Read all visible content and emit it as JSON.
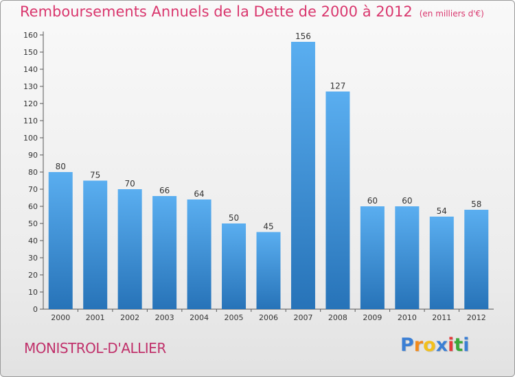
{
  "chart_data": {
    "type": "bar",
    "title": "Remboursements Annuels de la Dette de 2000 à 2012",
    "subtitle": "(en milliers d'€)",
    "categories": [
      "2000",
      "2001",
      "2002",
      "2003",
      "2004",
      "2005",
      "2006",
      "2007",
      "2008",
      "2009",
      "2010",
      "2011",
      "2012"
    ],
    "values": [
      80,
      75,
      70,
      66,
      64,
      50,
      45,
      156,
      127,
      60,
      60,
      54,
      58
    ],
    "ylim": [
      0,
      160
    ],
    "yticks": [
      0,
      10,
      20,
      30,
      40,
      50,
      60,
      70,
      80,
      90,
      100,
      110,
      120,
      130,
      140,
      150,
      160
    ],
    "grid": false,
    "data_labels": true,
    "bar_color": "#3b8fd8"
  },
  "commune": "MONISTROL-D'ALLIER",
  "brand": {
    "letters": [
      "P",
      "r",
      "o",
      "x",
      "i",
      "t",
      "i"
    ],
    "colors": [
      "#3b7fd4",
      "#f28a1c",
      "#f2c01c",
      "#3b7fd4",
      "#e23c3c",
      "#3aa83a",
      "#3b7fd4"
    ]
  }
}
